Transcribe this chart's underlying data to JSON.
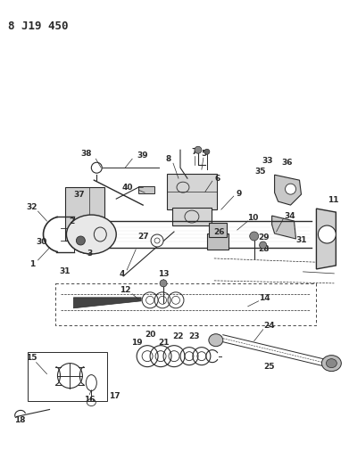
{
  "title": "8 J19 450",
  "bg_color": "#ffffff",
  "title_fontsize": 9,
  "fig_width": 3.91,
  "fig_height": 5.33,
  "dpi": 100,
  "lc": "#2a2a2a",
  "fs": 6.5
}
